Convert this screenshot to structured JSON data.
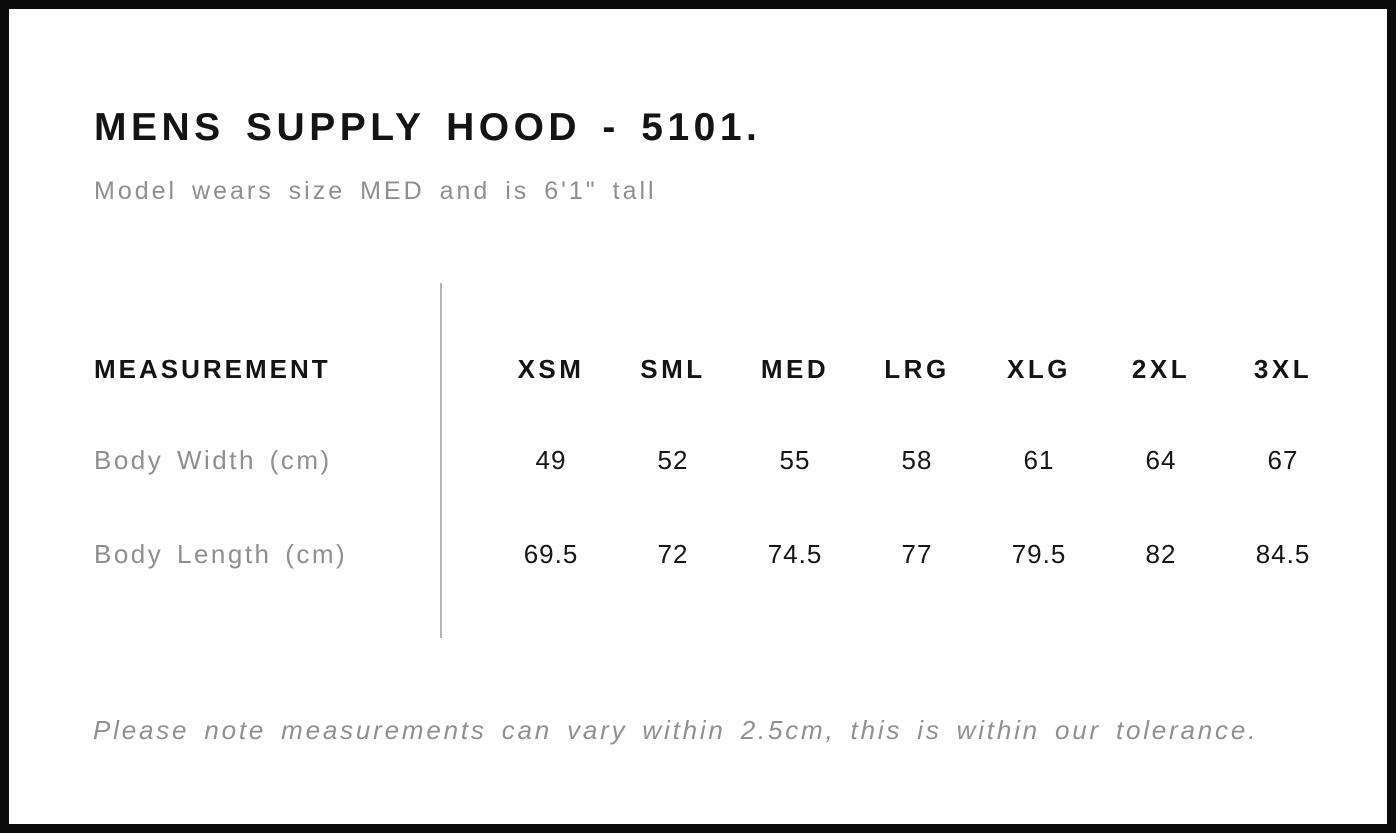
{
  "header": {
    "title": "MENS SUPPLY HOOD - 5101.",
    "subtitle": "Model wears size MED and is 6'1\" tall"
  },
  "table": {
    "label_header": "MEASUREMENT",
    "size_headers": [
      "XSM",
      "SML",
      "MED",
      "LRG",
      "XLG",
      "2XL",
      "3XL"
    ],
    "rows": [
      {
        "label": "Body Width (cm)",
        "values": [
          "49",
          "52",
          "55",
          "58",
          "61",
          "64",
          "67"
        ]
      },
      {
        "label": "Body Length (cm)",
        "values": [
          "69.5",
          "72",
          "74.5",
          "77",
          "79.5",
          "82",
          "84.5"
        ]
      }
    ]
  },
  "footer": {
    "note": "Please note measurements can vary within 2.5cm, this is within our tolerance."
  },
  "colors": {
    "frame_border": "#0b0b0b",
    "text_primary": "#141414",
    "text_muted": "#8f8f8f",
    "divider": "#b5b5b5",
    "background": "#ffffff"
  },
  "chart_data": {
    "type": "table",
    "title": "MENS SUPPLY HOOD - 5101.",
    "subtitle": "Model wears size MED and is 6'1\" tall",
    "columns": [
      "MEASUREMENT",
      "XSM",
      "SML",
      "MED",
      "LRG",
      "XLG",
      "2XL",
      "3XL"
    ],
    "rows": [
      [
        "Body Width (cm)",
        49,
        52,
        55,
        58,
        61,
        64,
        67
      ],
      [
        "Body Length (cm)",
        69.5,
        72,
        74.5,
        77,
        79.5,
        82,
        84.5
      ]
    ],
    "note": "Please note measurements can vary within 2.5cm, this is within our tolerance.",
    "units": "cm"
  }
}
